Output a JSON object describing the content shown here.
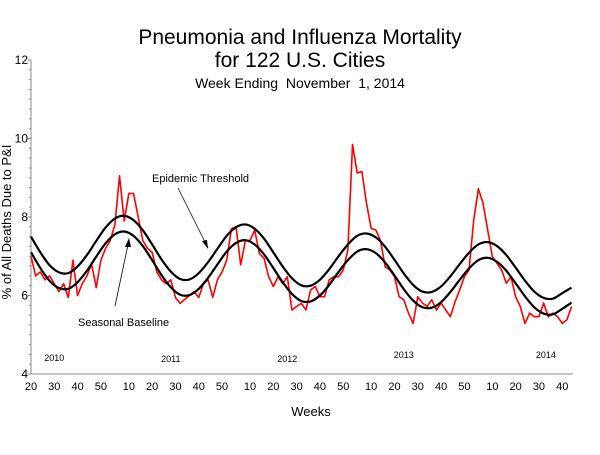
{
  "chart_data": {
    "type": "line",
    "title": "Pneumonia and Influenza Mortality",
    "title_line2": "for 122 U.S. Cities",
    "subtitle": "Week Ending  November  1, 2014",
    "xlabel": "Weeks",
    "ylabel": "% of All Deaths Due to P&I",
    "ylim": [
      4,
      12
    ],
    "yticks": [
      "4",
      "6",
      "8",
      "10",
      "12"
    ],
    "x_start": {
      "year": 2010,
      "week": 20
    },
    "x_end": {
      "year": 2014,
      "week": 44
    },
    "xtick_labels": [
      {
        "year": 2010,
        "weeks": [
          20,
          30,
          40,
          50
        ]
      },
      {
        "year": 2011,
        "weeks": [
          10,
          20,
          30,
          40,
          50
        ]
      },
      {
        "year": 2012,
        "weeks": [
          10,
          20,
          30,
          40,
          50
        ]
      },
      {
        "year": 2013,
        "weeks": [
          10,
          20,
          30,
          40,
          50
        ]
      },
      {
        "year": 2014,
        "weeks": [
          10,
          20,
          30,
          40
        ]
      }
    ],
    "year_labels": [
      "2010",
      "2011",
      "2012",
      "2013",
      "2014"
    ],
    "grid": false,
    "colors": {
      "observed": "#ff0000",
      "baseline": "#000000",
      "threshold": "#000000"
    },
    "annotations": {
      "threshold": "Epidemic Threshold",
      "baseline": "Seasonal Baseline"
    },
    "series": [
      {
        "key": "observed",
        "interval_weeks": 2,
        "values": [
          7.0,
          6.5,
          6.6,
          6.4,
          6.5,
          6.3,
          6.1,
          6.3,
          5.95,
          6.9,
          6.0,
          6.3,
          6.5,
          6.8,
          6.2,
          6.9,
          7.2,
          7.4,
          7.8,
          9.05,
          7.9,
          8.6,
          8.6,
          8.0,
          7.4,
          7.2,
          7.1,
          6.6,
          6.4,
          6.3,
          6.4,
          5.95,
          5.8,
          5.9,
          6.0,
          6.1,
          5.95,
          6.3,
          6.4,
          5.95,
          6.4,
          6.6,
          6.9,
          7.7,
          7.75,
          6.78,
          7.4,
          7.4,
          7.67,
          7.07,
          6.95,
          6.48,
          6.23,
          6.48,
          6.3,
          6.48,
          5.63,
          5.72,
          5.8,
          5.63,
          6.14,
          6.23,
          5.97,
          5.97,
          6.4,
          6.48,
          6.48,
          6.65,
          7.16,
          9.85,
          9.12,
          9.16,
          8.35,
          7.71,
          7.67,
          7.4,
          6.73,
          6.65,
          6.48,
          5.97,
          5.89,
          5.55,
          5.29,
          5.97,
          5.81,
          5.72,
          5.89,
          5.63,
          5.81,
          5.63,
          5.46,
          5.84,
          6.14,
          6.48,
          6.65,
          7.92,
          8.72,
          8.35,
          7.67,
          6.99,
          6.82,
          6.65,
          6.31,
          6.48,
          5.97,
          5.72,
          5.29,
          5.55,
          5.46,
          5.46,
          5.81,
          5.46,
          5.55,
          5.46,
          5.29,
          5.38,
          5.72
        ]
      },
      {
        "key": "baseline",
        "interval_weeks": 4,
        "values": [
          7.1,
          6.7,
          6.37,
          6.19,
          6.17,
          6.34,
          6.63,
          6.99,
          7.33,
          7.56,
          7.63,
          7.52,
          7.26,
          6.9,
          6.52,
          6.21,
          6.02,
          6.01,
          6.17,
          6.45,
          6.79,
          7.12,
          7.34,
          7.41,
          7.3,
          7.05,
          6.7,
          6.34,
          6.04,
          5.86,
          5.85,
          6.0,
          6.27,
          6.6,
          6.9,
          7.12,
          7.18,
          7.08,
          6.84,
          6.51,
          6.16,
          5.87,
          5.7,
          5.69,
          5.83,
          6.09,
          6.4,
          6.69,
          6.9,
          6.96,
          6.86,
          6.63,
          6.31,
          5.98,
          5.7,
          5.54,
          5.52,
          5.66,
          5.82
        ]
      },
      {
        "key": "threshold",
        "interval_weeks": 4,
        "values": [
          7.5,
          7.1,
          6.77,
          6.59,
          6.57,
          6.74,
          7.03,
          7.39,
          7.73,
          7.96,
          8.03,
          7.92,
          7.66,
          7.3,
          6.92,
          6.61,
          6.42,
          6.41,
          6.57,
          6.85,
          7.19,
          7.52,
          7.74,
          7.81,
          7.7,
          7.45,
          7.1,
          6.74,
          6.44,
          6.26,
          6.25,
          6.4,
          6.67,
          7.0,
          7.3,
          7.52,
          7.58,
          7.48,
          7.24,
          6.91,
          6.56,
          6.27,
          6.1,
          6.09,
          6.23,
          6.49,
          6.8,
          7.09,
          7.3,
          7.36,
          7.26,
          7.03,
          6.71,
          6.38,
          6.1,
          5.94,
          5.92,
          6.06,
          6.2
        ]
      }
    ]
  }
}
